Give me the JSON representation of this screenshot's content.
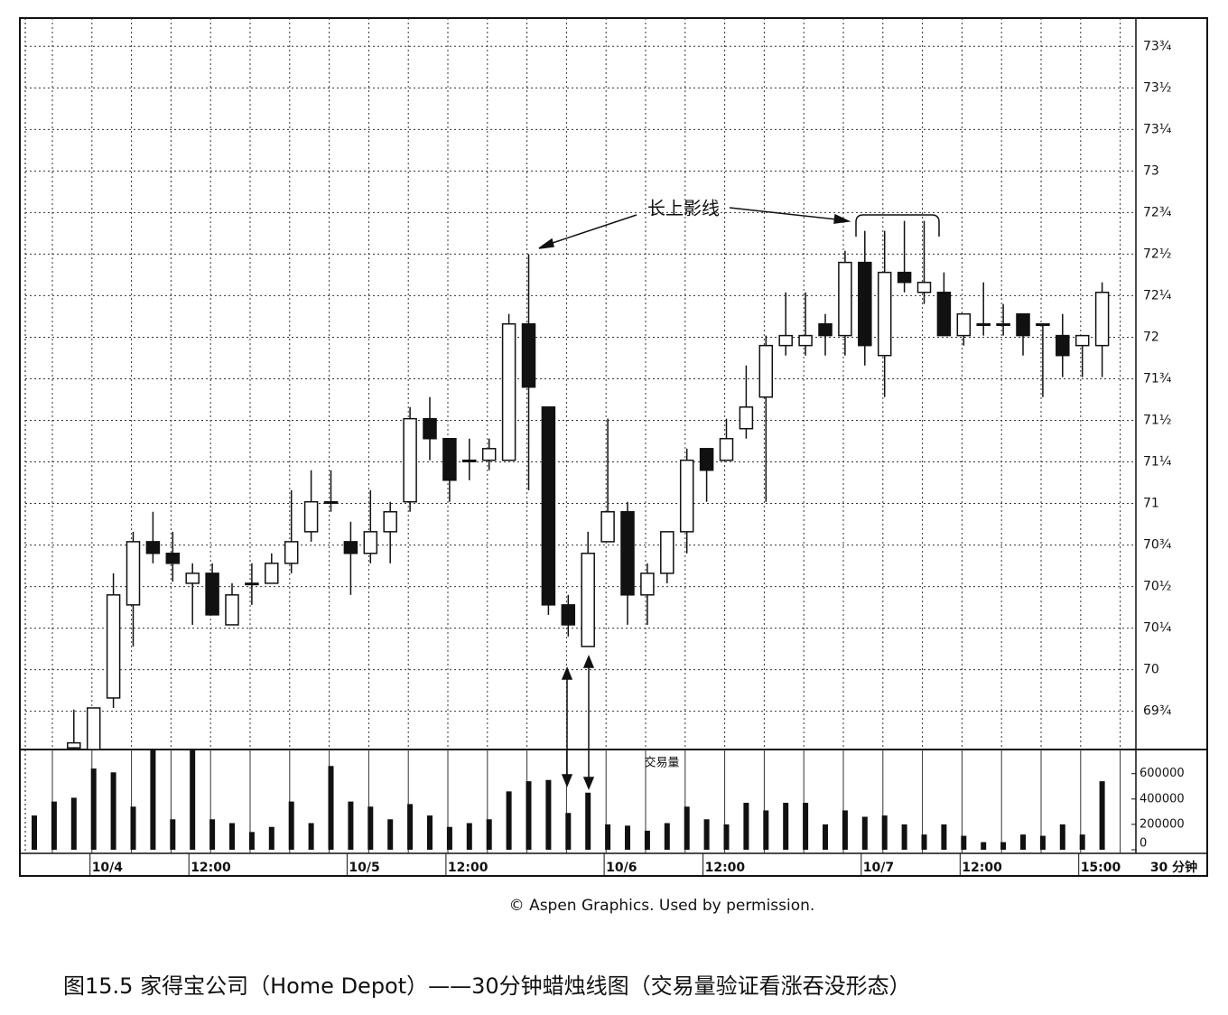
{
  "chart_data": [
    {
      "type": "candlestick",
      "annotation": "长上影线",
      "up_color": "#ffffff",
      "down_color": "#111111",
      "open": [
        null,
        null,
        69.53,
        69.52,
        69.83,
        70.39,
        70.77,
        70.7,
        70.52,
        70.58,
        70.27,
        70.52,
        70.52,
        70.64,
        70.83,
        71.01,
        70.77,
        70.7,
        70.83,
        71.01,
        71.51,
        71.39,
        71.26,
        71.26,
        71.26,
        72.08,
        71.58,
        70.39,
        70.14,
        70.77,
        70.95,
        70.45,
        70.58,
        70.83,
        71.33,
        71.26,
        71.45,
        71.64,
        71.95,
        71.95,
        72.08,
        72.01,
        72.45,
        71.89,
        72.39,
        72.27,
        72.27,
        72.01,
        72.08,
        72.08,
        72.14,
        72.08,
        72.01,
        71.95,
        71.95
      ],
      "high": [
        null,
        null,
        69.76,
        69.77,
        70.58,
        70.83,
        70.95,
        70.83,
        70.64,
        70.64,
        70.52,
        70.64,
        70.7,
        71.08,
        71.2,
        71.2,
        70.89,
        71.08,
        71.01,
        71.58,
        71.64,
        71.39,
        71.39,
        71.39,
        72.14,
        72.5,
        71.58,
        70.45,
        70.83,
        71.51,
        71.01,
        70.64,
        70.83,
        71.33,
        71.33,
        71.51,
        71.83,
        72.01,
        72.27,
        72.27,
        72.14,
        72.52,
        72.64,
        72.64,
        72.7,
        72.7,
        72.39,
        72.14,
        72.33,
        72.2,
        72.14,
        72.08,
        72.14,
        72.01,
        72.33
      ],
      "low": [
        null,
        null,
        69.52,
        69.52,
        69.77,
        70.14,
        70.64,
        70.53,
        70.27,
        70.33,
        70.27,
        70.39,
        70.52,
        70.58,
        70.77,
        70.95,
        70.45,
        70.64,
        70.64,
        70.95,
        71.26,
        71.01,
        71.14,
        71.2,
        71.26,
        71.08,
        70.33,
        70.2,
        70.14,
        70.77,
        70.27,
        70.27,
        70.52,
        70.7,
        71.01,
        71.26,
        71.39,
        71.01,
        71.89,
        71.89,
        71.89,
        71.89,
        71.83,
        71.64,
        72.27,
        72.2,
        72.01,
        71.95,
        72.01,
        72.01,
        71.89,
        71.64,
        71.76,
        71.76,
        71.76
      ],
      "close": [
        null,
        null,
        69.56,
        69.77,
        70.45,
        70.77,
        70.7,
        70.64,
        70.58,
        70.33,
        70.45,
        70.52,
        70.64,
        70.77,
        71.01,
        71.01,
        70.7,
        70.83,
        70.95,
        71.51,
        71.39,
        71.14,
        71.26,
        71.33,
        72.08,
        71.7,
        70.39,
        70.27,
        70.7,
        70.95,
        70.45,
        70.58,
        70.83,
        71.26,
        71.2,
        71.39,
        71.58,
        71.95,
        72.01,
        72.01,
        72.01,
        72.45,
        71.95,
        72.39,
        72.33,
        72.33,
        72.01,
        72.14,
        72.08,
        72.08,
        72.01,
        72.08,
        71.89,
        72.01,
        72.27
      ],
      "ylim": [
        69.52,
        73.92
      ],
      "yticks": [
        {
          "value": 73.75,
          "label": "73¾"
        },
        {
          "value": 73.5,
          "label": "73½"
        },
        {
          "value": 73.25,
          "label": "73¼"
        },
        73,
        {
          "value": 72.75,
          "label": "72¾"
        },
        {
          "value": 72.5,
          "label": "72½"
        },
        {
          "value": 72.25,
          "label": "72¼"
        },
        72,
        {
          "value": 71.75,
          "label": "71¾"
        },
        {
          "value": 71.5,
          "label": "71½"
        },
        {
          "value": 71.25,
          "label": "71¼"
        },
        71,
        {
          "value": 70.75,
          "label": "70¾"
        },
        {
          "value": 70.5,
          "label": "70½"
        },
        {
          "value": 70.25,
          "label": "70¼"
        },
        70,
        {
          "value": 69.75,
          "label": "69¾"
        }
      ],
      "grid": true
    },
    {
      "type": "bar",
      "title": "交易量",
      "x_unit": "30 分钟",
      "color": "#111111",
      "categories": [
        null,
        null,
        null,
        "10/4",
        null,
        null,
        null,
        null,
        "12:00",
        null,
        null,
        null,
        null,
        null,
        null,
        null,
        "10/5",
        null,
        null,
        null,
        null,
        "12:00",
        null,
        null,
        null,
        null,
        null,
        null,
        null,
        "10/6",
        null,
        null,
        null,
        null,
        "12:00",
        null,
        null,
        null,
        null,
        null,
        null,
        null,
        "10/7",
        null,
        null,
        null,
        null,
        "12:00",
        null,
        null,
        null,
        null,
        null,
        "15:00",
        null
      ],
      "values": [
        270000,
        380000,
        410000,
        640000,
        610000,
        340000,
        790000,
        240000,
        790000,
        240000,
        210000,
        140000,
        180000,
        380000,
        210000,
        660000,
        380000,
        340000,
        240000,
        360000,
        270000,
        180000,
        210000,
        240000,
        460000,
        540000,
        550000,
        290000,
        450000,
        200000,
        190000,
        150000,
        210000,
        340000,
        240000,
        200000,
        370000,
        310000,
        370000,
        370000,
        200000,
        310000,
        260000,
        270000,
        200000,
        120000,
        200000,
        110000,
        60000,
        60000,
        120000,
        110000,
        200000,
        120000,
        540000
      ],
      "ylim": [
        0,
        790000
      ],
      "yticks": [
        600000,
        400000,
        200000,
        0
      ]
    }
  ],
  "source": "© Aspen Graphics. Used by permission.",
  "caption": "图15.5 家得宝公司（Home Depot）——30分钟蜡烛线图（交易量验证看涨吞没形态）"
}
